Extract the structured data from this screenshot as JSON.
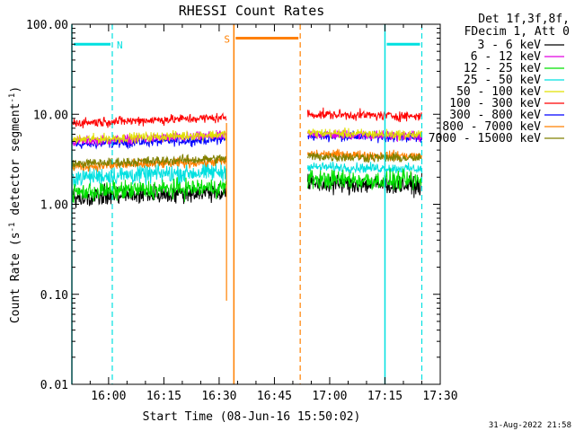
{
  "chart_data": {
    "type": "line",
    "title": "RHESSI Count Rates",
    "xlabel": "Start Time (08-Jun-16 15:50:02)",
    "ylabel_prefix": "Count Rate (s",
    "ylabel_sup": "-1",
    "ylabel_mid": " detector segment",
    "ylabel_sup2": "-1",
    "ylabel_suffix": ")",
    "y_scale": "log",
    "ylim": [
      0.01,
      100
    ],
    "y_ticks": [
      {
        "value": 100,
        "label": "100.00"
      },
      {
        "value": 10,
        "label": "10.00"
      },
      {
        "value": 1,
        "label": "1.00"
      },
      {
        "value": 0.1,
        "label": "0.10"
      },
      {
        "value": 0.01,
        "label": "0.01"
      }
    ],
    "xlim": [
      "15:50:02",
      "17:30"
    ],
    "x_ticks": [
      "16:00",
      "16:15",
      "16:30",
      "16:45",
      "17:00",
      "17:15",
      "17:30"
    ],
    "legend_header": [
      "Det 1f,3f,8f,",
      "FDecim 1, Att 0"
    ],
    "legend_placement": "top-right outside",
    "series": [
      {
        "name": "3 - 6 keV",
        "color": "#000000",
        "level_first": 1.2,
        "level_second": 1.7
      },
      {
        "name": "6 - 12 keV",
        "color": "#e000e0",
        "level_first": 5.0,
        "level_second": 6.0
      },
      {
        "name": "12 - 25 keV",
        "color": "#00e000",
        "level_first": 1.35,
        "level_second": 1.9
      },
      {
        "name": "25 - 50 keV",
        "color": "#00e0e0",
        "level_first": 2.0,
        "level_second": 2.6
      },
      {
        "name": "50 - 100 keV",
        "color": "#e0e000",
        "level_first": 5.2,
        "level_second": 6.2
      },
      {
        "name": "100 - 300 keV",
        "color": "#ff0000",
        "level_first": 8.0,
        "level_second": 10.0
      },
      {
        "name": "300 - 800 keV",
        "color": "#0000ff",
        "level_first": 4.6,
        "level_second": 5.8
      },
      {
        "name": "800 - 7000 keV",
        "color": "#ff8000",
        "level_first": 2.6,
        "level_second": 3.6
      },
      {
        "name": "7000 - 15000 keV",
        "color": "#808000",
        "level_first": 2.8,
        "level_second": 3.4
      }
    ],
    "data_segments": [
      [
        "15:50:02",
        "16:32"
      ],
      [
        "16:54",
        "17:25"
      ]
    ],
    "markers": [
      {
        "label": "N",
        "color": "#00e0e0",
        "bar": [
          "15:50:02",
          "16:01"
        ],
        "solid_line": "15:50:02",
        "dashed_line": "16:01",
        "bar_level": 60
      },
      {
        "label": "S",
        "color": "#ff8000",
        "bar": [
          "16:34",
          "16:52"
        ],
        "solid_line": "16:34",
        "dashed_line": "16:52",
        "bar_level": 70
      },
      {
        "label": "",
        "color": "#00e0e0",
        "bar": [
          "17:15",
          "17:25"
        ],
        "solid_line": "17:15",
        "dashed_line": "17:25",
        "bar_level": 60
      }
    ],
    "dropout": {
      "time": "16:32",
      "value": 0.085,
      "color": "#ff8000"
    }
  },
  "footer": {
    "timestamp": "31-Aug-2022 21:58"
  }
}
